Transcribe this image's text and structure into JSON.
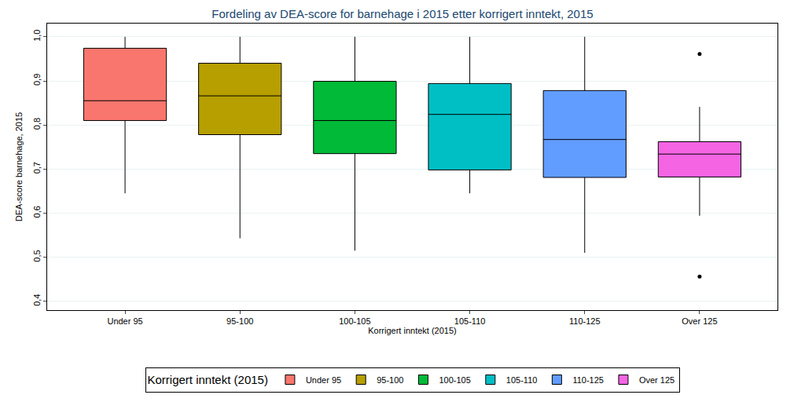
{
  "chart_data": {
    "type": "box",
    "title": "Fordeling av DEA-score for barnehage i 2015 etter korrigert inntekt, 2015",
    "x_label": "Korrigert inntekt (2015)",
    "y_label": "DEA-score barnehage, 2015",
    "legend_title": "Korrigert inntekt (2015)",
    "legend": "bottom",
    "grid": true,
    "categories": [
      "Under 95",
      "95-100",
      "100-105",
      "105-110",
      "110-125",
      "Over 125"
    ],
    "series": [
      {
        "name": "Under 95",
        "color": "#f8766d",
        "lower_whisker": 0.645,
        "q1": 0.81,
        "median": 0.855,
        "q3": 0.974,
        "upper_whisker": 1.0,
        "outliers": []
      },
      {
        "name": "95-100",
        "color": "#b79f00",
        "lower_whisker": 0.543,
        "q1": 0.778,
        "median": 0.866,
        "q3": 0.94,
        "upper_whisker": 1.0,
        "outliers": []
      },
      {
        "name": "100-105",
        "color": "#00ba38",
        "lower_whisker": 0.515,
        "q1": 0.735,
        "median": 0.81,
        "q3": 0.899,
        "upper_whisker": 1.0,
        "outliers": []
      },
      {
        "name": "105-110",
        "color": "#00bfc4",
        "lower_whisker": 0.645,
        "q1": 0.698,
        "median": 0.824,
        "q3": 0.894,
        "upper_whisker": 1.0,
        "outliers": []
      },
      {
        "name": "110-125",
        "color": "#619cff",
        "lower_whisker": 0.51,
        "q1": 0.681,
        "median": 0.767,
        "q3": 0.878,
        "upper_whisker": 1.0,
        "outliers": []
      },
      {
        "name": "Over 125",
        "color": "#f564e3",
        "lower_whisker": 0.594,
        "q1": 0.682,
        "median": 0.734,
        "q3": 0.762,
        "upper_whisker": 0.841,
        "outliers": [
          0.961,
          0.456
        ]
      }
    ],
    "ylim": [
      0.38,
      1.03
    ],
    "yticks": [
      {
        "value": 0.4,
        "label": "0,4"
      },
      {
        "value": 0.5,
        "label": "0,5"
      },
      {
        "value": 0.6,
        "label": "0,6"
      },
      {
        "value": 0.7,
        "label": "0,7"
      },
      {
        "value": 0.8,
        "label": "0,8"
      },
      {
        "value": 0.9,
        "label": "0,9"
      },
      {
        "value": 1.0,
        "label": "1,0"
      }
    ]
  }
}
